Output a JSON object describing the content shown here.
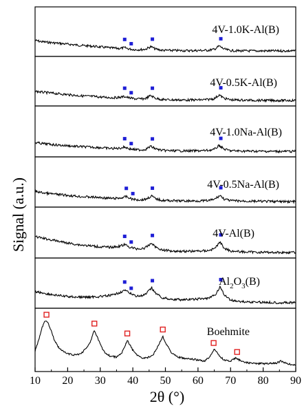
{
  "chart_data": {
    "type": "line",
    "xlabel": "2θ (°)",
    "ylabel": "Signal (a.u.)",
    "xlim": [
      10,
      90
    ],
    "xticks": [
      10,
      20,
      30,
      40,
      50,
      60,
      70,
      80,
      90
    ],
    "layout": "stacked panels, labels top-right of each panel, no legend",
    "colors": {
      "line": "#000000",
      "filled_marker": "#1f1fd6",
      "open_marker": "#e02020"
    },
    "series": [
      {
        "name": "4V-1.0K-Al(B)",
        "trace": [
          [
            10,
            0.34
          ],
          [
            12,
            0.3
          ],
          [
            14,
            0.28
          ],
          [
            16,
            0.26
          ],
          [
            18,
            0.24
          ],
          [
            20,
            0.22
          ],
          [
            22,
            0.2
          ],
          [
            24,
            0.18
          ],
          [
            26,
            0.165
          ],
          [
            28,
            0.15
          ],
          [
            30,
            0.13
          ],
          [
            32,
            0.11
          ],
          [
            34,
            0.09
          ],
          [
            36,
            0.08
          ],
          [
            37.5,
            0.105
          ],
          [
            39,
            0.06
          ],
          [
            41,
            0.04
          ],
          [
            43,
            0.045
          ],
          [
            44,
            0.06
          ],
          [
            45.5,
            0.14
          ],
          [
            47,
            0.06
          ],
          [
            49,
            0.02
          ],
          [
            52,
            0.015
          ],
          [
            55,
            0.01
          ],
          [
            58,
            0.01
          ],
          [
            61,
            0.015
          ],
          [
            63,
            0.02
          ],
          [
            65,
            0.05
          ],
          [
            66.5,
            0.16
          ],
          [
            68,
            0.06
          ],
          [
            70,
            0.01
          ],
          [
            74,
            0.0
          ],
          [
            78,
            0.0
          ],
          [
            82,
            0.0
          ],
          [
            86,
            0.0
          ],
          [
            90,
            0.0
          ]
        ],
        "markers": {
          "style": "filled-square",
          "x": [
            37.5,
            39.5,
            46,
            67
          ]
        }
      },
      {
        "name": "4V-0.5K-Al(B)",
        "trace": [
          [
            10,
            0.3
          ],
          [
            12,
            0.27
          ],
          [
            14,
            0.25
          ],
          [
            16,
            0.23
          ],
          [
            18,
            0.21
          ],
          [
            20,
            0.19
          ],
          [
            22,
            0.17
          ],
          [
            24,
            0.15
          ],
          [
            26,
            0.14
          ],
          [
            28,
            0.13
          ],
          [
            30,
            0.11
          ],
          [
            32,
            0.1
          ],
          [
            34,
            0.09
          ],
          [
            36,
            0.1
          ],
          [
            37.5,
            0.13
          ],
          [
            39,
            0.08
          ],
          [
            41,
            0.05
          ],
          [
            43,
            0.05
          ],
          [
            44,
            0.07
          ],
          [
            45.5,
            0.16
          ],
          [
            47,
            0.07
          ],
          [
            49,
            0.03
          ],
          [
            52,
            0.02
          ],
          [
            55,
            0.015
          ],
          [
            58,
            0.015
          ],
          [
            61,
            0.02
          ],
          [
            63,
            0.03
          ],
          [
            65,
            0.06
          ],
          [
            66.5,
            0.18
          ],
          [
            68,
            0.07
          ],
          [
            70,
            0.02
          ],
          [
            74,
            0.01
          ],
          [
            78,
            0.005
          ],
          [
            82,
            0.0
          ],
          [
            86,
            0.0
          ],
          [
            90,
            0.0
          ]
        ],
        "markers": {
          "style": "filled-square",
          "x": [
            37.5,
            39.5,
            46,
            67
          ]
        }
      },
      {
        "name": "4V-1.0Na-Al(B)",
        "trace": [
          [
            10,
            0.28
          ],
          [
            12,
            0.25
          ],
          [
            14,
            0.23
          ],
          [
            16,
            0.21
          ],
          [
            18,
            0.19
          ],
          [
            20,
            0.18
          ],
          [
            22,
            0.16
          ],
          [
            24,
            0.15
          ],
          [
            26,
            0.14
          ],
          [
            28,
            0.13
          ],
          [
            30,
            0.12
          ],
          [
            32,
            0.1
          ],
          [
            34,
            0.09
          ],
          [
            36,
            0.1
          ],
          [
            37.5,
            0.14
          ],
          [
            39,
            0.08
          ],
          [
            41,
            0.05
          ],
          [
            43,
            0.05
          ],
          [
            44,
            0.07
          ],
          [
            45.5,
            0.16
          ],
          [
            47,
            0.08
          ],
          [
            49,
            0.03
          ],
          [
            52,
            0.02
          ],
          [
            55,
            0.015
          ],
          [
            58,
            0.015
          ],
          [
            61,
            0.02
          ],
          [
            63,
            0.03
          ],
          [
            65,
            0.06
          ],
          [
            66.5,
            0.19
          ],
          [
            68,
            0.07
          ],
          [
            70,
            0.02
          ],
          [
            74,
            0.01
          ],
          [
            78,
            0.005
          ],
          [
            82,
            0.0
          ],
          [
            86,
            0.0
          ],
          [
            90,
            0.0
          ]
        ],
        "markers": {
          "style": "filled-square",
          "x": [
            37.5,
            39.5,
            46,
            67
          ]
        }
      },
      {
        "name": "4V-0.5Na-Al(B)",
        "trace": [
          [
            10,
            0.33
          ],
          [
            12,
            0.29
          ],
          [
            14,
            0.26
          ],
          [
            16,
            0.24
          ],
          [
            18,
            0.22
          ],
          [
            20,
            0.2
          ],
          [
            22,
            0.18
          ],
          [
            24,
            0.16
          ],
          [
            26,
            0.15
          ],
          [
            28,
            0.14
          ],
          [
            30,
            0.13
          ],
          [
            32,
            0.11
          ],
          [
            34,
            0.1
          ],
          [
            36,
            0.11
          ],
          [
            38,
            0.16
          ],
          [
            39.5,
            0.09
          ],
          [
            41,
            0.06
          ],
          [
            43,
            0.06
          ],
          [
            44,
            0.08
          ],
          [
            45.8,
            0.18
          ],
          [
            47,
            0.09
          ],
          [
            49,
            0.04
          ],
          [
            52,
            0.03
          ],
          [
            55,
            0.02
          ],
          [
            58,
            0.02
          ],
          [
            61,
            0.025
          ],
          [
            63,
            0.03
          ],
          [
            65,
            0.07
          ],
          [
            66.8,
            0.2
          ],
          [
            68,
            0.08
          ],
          [
            70,
            0.03
          ],
          [
            74,
            0.015
          ],
          [
            78,
            0.01
          ],
          [
            82,
            0.005
          ],
          [
            86,
            0.0
          ],
          [
            90,
            0.0
          ]
        ],
        "markers": {
          "style": "filled-square",
          "x": [
            38,
            40,
            46,
            67
          ]
        }
      },
      {
        "name": "4V-Al(B)",
        "trace": [
          [
            10,
            0.5
          ],
          [
            12,
            0.46
          ],
          [
            14,
            0.42
          ],
          [
            16,
            0.38
          ],
          [
            18,
            0.34
          ],
          [
            20,
            0.3
          ],
          [
            22,
            0.27
          ],
          [
            24,
            0.24
          ],
          [
            26,
            0.22
          ],
          [
            28,
            0.2
          ],
          [
            30,
            0.18
          ],
          [
            32,
            0.17
          ],
          [
            34,
            0.17
          ],
          [
            36,
            0.2
          ],
          [
            37.5,
            0.25
          ],
          [
            39,
            0.17
          ],
          [
            41,
            0.12
          ],
          [
            43,
            0.12
          ],
          [
            44,
            0.16
          ],
          [
            45.8,
            0.3
          ],
          [
            47,
            0.17
          ],
          [
            49,
            0.08
          ],
          [
            52,
            0.05
          ],
          [
            55,
            0.04
          ],
          [
            58,
            0.04
          ],
          [
            61,
            0.05
          ],
          [
            63,
            0.06
          ],
          [
            65,
            0.12
          ],
          [
            66.8,
            0.33
          ],
          [
            68,
            0.14
          ],
          [
            70,
            0.05
          ],
          [
            74,
            0.02
          ],
          [
            78,
            0.01
          ],
          [
            82,
            0.005
          ],
          [
            86,
            0.0
          ],
          [
            90,
            0.0
          ]
        ],
        "markers": {
          "style": "filled-square",
          "x": [
            37.5,
            39.5,
            46,
            67
          ]
        }
      },
      {
        "name": "Al2O3(B)",
        "trace": [
          [
            10,
            0.36
          ],
          [
            12,
            0.32
          ],
          [
            14,
            0.28
          ],
          [
            16,
            0.25
          ],
          [
            18,
            0.22
          ],
          [
            20,
            0.2
          ],
          [
            22,
            0.19
          ],
          [
            24,
            0.18
          ],
          [
            26,
            0.18
          ],
          [
            28,
            0.19
          ],
          [
            30,
            0.2
          ],
          [
            32,
            0.22
          ],
          [
            34,
            0.25
          ],
          [
            36,
            0.33
          ],
          [
            37.5,
            0.4
          ],
          [
            39,
            0.31
          ],
          [
            41,
            0.22
          ],
          [
            43,
            0.22
          ],
          [
            44,
            0.28
          ],
          [
            45.8,
            0.47
          ],
          [
            47,
            0.31
          ],
          [
            49,
            0.16
          ],
          [
            52,
            0.11
          ],
          [
            55,
            0.1
          ],
          [
            58,
            0.1
          ],
          [
            60,
            0.12
          ],
          [
            62,
            0.13
          ],
          [
            64,
            0.17
          ],
          [
            65.5,
            0.28
          ],
          [
            66.8,
            0.52
          ],
          [
            68,
            0.26
          ],
          [
            70,
            0.08
          ],
          [
            74,
            0.03
          ],
          [
            78,
            0.02
          ],
          [
            82,
            0.01
          ],
          [
            86,
            0.0
          ],
          [
            90,
            0.0
          ]
        ],
        "markers": {
          "style": "filled-square",
          "x": [
            37.5,
            39.5,
            46,
            67
          ]
        }
      },
      {
        "name": "Boehmite",
        "trace": [
          [
            10,
            0.3
          ],
          [
            11,
            0.5
          ],
          [
            12,
            0.75
          ],
          [
            13,
            0.92
          ],
          [
            14,
            0.88
          ],
          [
            15,
            0.7
          ],
          [
            16,
            0.52
          ],
          [
            17,
            0.4
          ],
          [
            18,
            0.32
          ],
          [
            20,
            0.25
          ],
          [
            22,
            0.22
          ],
          [
            24,
            0.25
          ],
          [
            26,
            0.38
          ],
          [
            27,
            0.5
          ],
          [
            28.2,
            0.72
          ],
          [
            29.5,
            0.52
          ],
          [
            31,
            0.3
          ],
          [
            33,
            0.2
          ],
          [
            35,
            0.18
          ],
          [
            36.5,
            0.25
          ],
          [
            38.3,
            0.52
          ],
          [
            40,
            0.32
          ],
          [
            42,
            0.18
          ],
          [
            44,
            0.16
          ],
          [
            46,
            0.2
          ],
          [
            47.5,
            0.38
          ],
          [
            49.2,
            0.6
          ],
          [
            50.5,
            0.42
          ],
          [
            52,
            0.26
          ],
          [
            54,
            0.18
          ],
          [
            56,
            0.15
          ],
          [
            58,
            0.14
          ],
          [
            60,
            0.12
          ],
          [
            62,
            0.1
          ],
          [
            63.5,
            0.18
          ],
          [
            65,
            0.35
          ],
          [
            66,
            0.25
          ],
          [
            68,
            0.12
          ],
          [
            70,
            0.1
          ],
          [
            71.5,
            0.16
          ],
          [
            72.5,
            0.13
          ],
          [
            74,
            0.08
          ],
          [
            76,
            0.06
          ],
          [
            78,
            0.05
          ],
          [
            80,
            0.05
          ],
          [
            82,
            0.05
          ],
          [
            84,
            0.06
          ],
          [
            85.5,
            0.1
          ],
          [
            87,
            0.05
          ],
          [
            90,
            0.02
          ]
        ],
        "markers": {
          "style": "open-square",
          "x": [
            13.5,
            28.2,
            38.3,
            49.2,
            64.8,
            72
          ]
        }
      }
    ]
  },
  "labels": {
    "panel_0": "4V-1.0K-Al(B)",
    "panel_1": "4V-0.5K-Al(B)",
    "panel_2": "4V-1.0Na-Al(B)",
    "panel_3": "4V-0.5Na-Al(B)",
    "panel_4": "4V-Al(B)",
    "panel_5_main": "Al",
    "panel_5_sub1": "2",
    "panel_5_mid": "O",
    "panel_5_sub2": "3",
    "panel_5_end": "(B)",
    "panel_6": "Boehmite"
  }
}
